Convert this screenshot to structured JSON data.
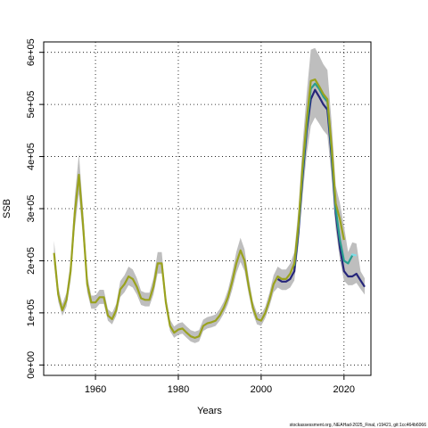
{
  "chart_data": {
    "type": "line",
    "title": "",
    "xlabel": "Years",
    "ylabel": "SSB",
    "xlim": [
      1947.5,
      2026.5
    ],
    "ylim": [
      -20000,
      620000
    ],
    "x_ticks": [
      1960,
      1980,
      2000,
      2020
    ],
    "y_ticks": [
      0,
      100000,
      200000,
      300000,
      400000,
      500000,
      600000
    ],
    "y_tick_labels": [
      "0e+00",
      "1e+05",
      "2e+05",
      "3e+05",
      "4e+05",
      "5e+05",
      "6e+05"
    ],
    "grid": "dotted, at ticks",
    "band_color": "#bebebe",
    "series": [
      {
        "color": "#9aa21e",
        "x": [
          1950,
          1951,
          1952,
          1953,
          1954,
          1955,
          1956,
          1957,
          1958,
          1959,
          1960,
          1961,
          1962,
          1963,
          1964,
          1965,
          1966,
          1967,
          1968,
          1969,
          1970,
          1971,
          1972,
          1973,
          1974,
          1975,
          1976,
          1977,
          1978,
          1979,
          1980,
          1981,
          1982,
          1983,
          1984,
          1985,
          1986,
          1987,
          1988,
          1989,
          1990,
          1991,
          1992,
          1993,
          1994,
          1995,
          1996,
          1997,
          1998,
          1999,
          2000,
          2001,
          2002,
          2003,
          2004,
          2005,
          2006,
          2007,
          2008,
          2009,
          2010,
          2011,
          2012,
          2013,
          2014,
          2015,
          2016,
          2017,
          2018,
          2019,
          2020
        ],
        "y": [
          215000,
          135000,
          105000,
          125000,
          180000,
          290000,
          365000,
          270000,
          155000,
          120000,
          120000,
          130000,
          130000,
          95000,
          88000,
          105000,
          145000,
          155000,
          170000,
          165000,
          150000,
          128000,
          125000,
          125000,
          150000,
          195000,
          195000,
          120000,
          75000,
          62000,
          68000,
          70000,
          62000,
          55000,
          52000,
          55000,
          75000,
          80000,
          82000,
          85000,
          95000,
          110000,
          130000,
          160000,
          195000,
          220000,
          200000,
          150000,
          110000,
          88000,
          85000,
          100000,
          125000,
          155000,
          170000,
          165000,
          165000,
          175000,
          195000,
          270000,
          380000,
          470000,
          545000,
          548000,
          535000,
          520000,
          510000,
          420000,
          310000,
          280000,
          240000
        ]
      },
      {
        "color": "#2a9d8f",
        "x": [
          2008,
          2009,
          2010,
          2011,
          2012,
          2013,
          2014,
          2015,
          2016,
          2017,
          2018,
          2019,
          2020,
          2021,
          2022
        ],
        "y": [
          190000,
          265000,
          370000,
          460000,
          530000,
          540000,
          530000,
          515000,
          505000,
          410000,
          300000,
          240000,
          200000,
          195000,
          210000
        ]
      },
      {
        "color": "#26267a",
        "x": [
          2004,
          2005,
          2006,
          2007,
          2008,
          2009,
          2010,
          2011,
          2012,
          2013,
          2014,
          2015,
          2016,
          2017,
          2018,
          2019,
          2020,
          2021,
          2022,
          2023,
          2024,
          2025
        ],
        "y": [
          165000,
          160000,
          160000,
          165000,
          180000,
          255000,
          360000,
          450000,
          510000,
          528000,
          515000,
          500000,
          490000,
          400000,
          290000,
          225000,
          180000,
          170000,
          170000,
          175000,
          162000,
          150000
        ]
      },
      {
        "color": "#7fdde8",
        "x": [
          2020,
          2021,
          2022,
          2023
        ],
        "y": [
          200000,
          195000,
          212000,
          210000
        ]
      }
    ]
  },
  "footer": "stockassessment.org, NEAHad-2025_Final, r19421, git:1cc464b6066"
}
